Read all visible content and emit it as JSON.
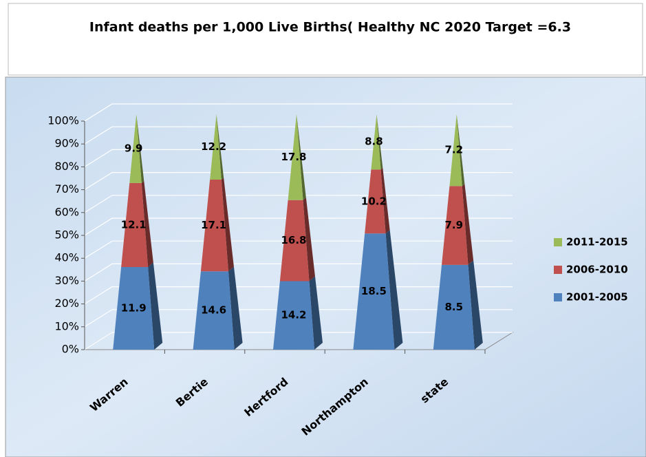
{
  "chart_data": {
    "type": "pyramid_stacked_percent",
    "title": "Infant deaths per 1,000 Live Births( Healthy NC 2020 Target =6.3",
    "categories": [
      "Warren",
      "Bertie",
      "Hertford",
      "Northampton",
      "state"
    ],
    "series": [
      {
        "name": "2001-2005",
        "color": "#4f81bd",
        "values": [
          11.9,
          14.6,
          14.2,
          18.5,
          8.5
        ]
      },
      {
        "name": "2006-2010",
        "color": "#c0504d",
        "values": [
          12.1,
          17.1,
          16.8,
          10.2,
          7.9
        ]
      },
      {
        "name": "2011-2015",
        "color": "#9bbb59",
        "values": [
          9.9,
          12.2,
          17.8,
          8.8,
          7.2
        ]
      }
    ],
    "ylim": [
      0,
      100
    ],
    "yticks": [
      {
        "value": 0,
        "label": "0%"
      },
      {
        "value": 10,
        "label": "10%"
      },
      {
        "value": 20,
        "label": "20%"
      },
      {
        "value": 30,
        "label": "30%"
      },
      {
        "value": 40,
        "label": "40%"
      },
      {
        "value": 50,
        "label": "50%"
      },
      {
        "value": 60,
        "label": "60%"
      },
      {
        "value": 70,
        "label": "70%"
      },
      {
        "value": 80,
        "label": "80%"
      },
      {
        "value": 90,
        "label": "90%"
      },
      {
        "value": 100,
        "label": "100%"
      }
    ],
    "grid": true,
    "legend": "right"
  }
}
